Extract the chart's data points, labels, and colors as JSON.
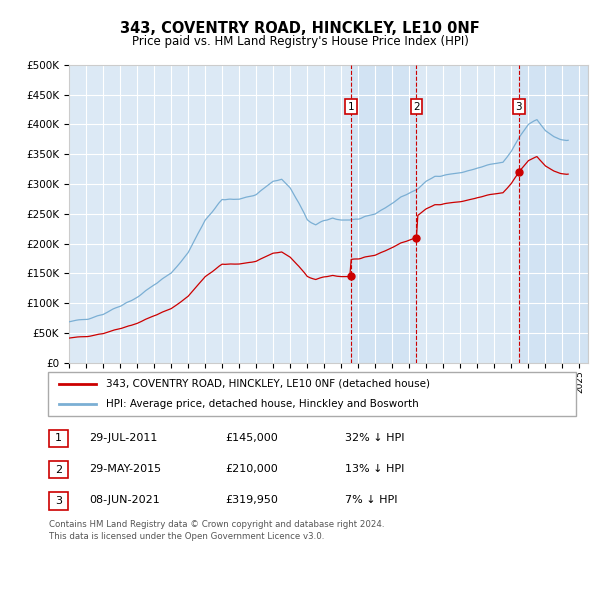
{
  "title": "343, COVENTRY ROAD, HINCKLEY, LE10 0NF",
  "subtitle": "Price paid vs. HM Land Registry's House Price Index (HPI)",
  "background_color": "#ffffff",
  "plot_bg_color": "#dce9f5",
  "grid_color": "#ffffff",
  "ylim": [
    0,
    500000
  ],
  "yticks": [
    0,
    50000,
    100000,
    150000,
    200000,
    250000,
    300000,
    350000,
    400000,
    450000,
    500000
  ],
  "ytick_labels": [
    "£0",
    "£50K",
    "£100K",
    "£150K",
    "£200K",
    "£250K",
    "£300K",
    "£350K",
    "£400K",
    "£450K",
    "£500K"
  ],
  "xlim_start": 1995.0,
  "xlim_end": 2025.5,
  "transaction_color": "#cc0000",
  "hpi_color": "#7bafd4",
  "shade_color": "#dce9f5",
  "transactions": [
    {
      "year": 2011.58,
      "price": 145000,
      "label": "1"
    },
    {
      "year": 2015.42,
      "price": 210000,
      "label": "2"
    },
    {
      "year": 2021.44,
      "price": 319950,
      "label": "3"
    }
  ],
  "vline_dates": [
    2011.58,
    2015.42,
    2021.44
  ],
  "legend_entries": [
    "343, COVENTRY ROAD, HINCKLEY, LE10 0NF (detached house)",
    "HPI: Average price, detached house, Hinckley and Bosworth"
  ],
  "table_rows": [
    {
      "num": "1",
      "date": "29-JUL-2011",
      "price": "£145,000",
      "pct": "32% ↓ HPI"
    },
    {
      "num": "2",
      "date": "29-MAY-2015",
      "price": "£210,000",
      "pct": "13% ↓ HPI"
    },
    {
      "num": "3",
      "date": "08-JUN-2021",
      "price": "£319,950",
      "pct": "7% ↓ HPI"
    }
  ],
  "footer": "Contains HM Land Registry data © Crown copyright and database right 2024.\nThis data is licensed under the Open Government Licence v3.0."
}
